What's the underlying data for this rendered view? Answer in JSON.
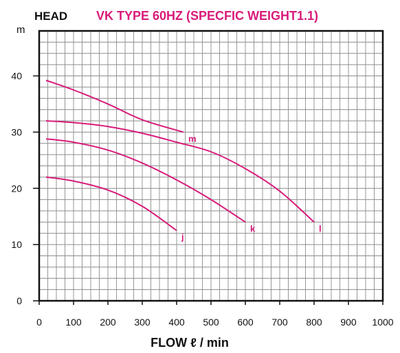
{
  "header": {
    "head_label": "HEAD",
    "title": "VK TYPE 60HZ (SPECFIC WEIGHT1.1)",
    "title_color": "#d81b7a"
  },
  "chart_data": {
    "type": "line",
    "title": "VK TYPE 60HZ (SPECFIC WEIGHT1.1)",
    "xlabel": "FLOW ℓ / min",
    "ylabel": "HEAD",
    "yunit": "m",
    "xlim": [
      0,
      1000
    ],
    "ylim": [
      0,
      48
    ],
    "xticks": [
      0,
      100,
      200,
      300,
      400,
      500,
      600,
      700,
      800,
      900,
      1000
    ],
    "yticks": [
      0,
      10,
      20,
      30,
      40
    ],
    "grid": true,
    "line_color": "#d81b7a",
    "series": [
      {
        "name": "m",
        "x": [
          20,
          100,
          200,
          300,
          420
        ],
        "y": [
          39.2,
          37.5,
          35,
          32.2,
          30
        ]
      },
      {
        "name": "l",
        "x": [
          20,
          100,
          200,
          300,
          400,
          500,
          600,
          700,
          800
        ],
        "y": [
          32,
          31.7,
          31,
          29.8,
          28.2,
          26.5,
          23.5,
          19.5,
          14
        ]
      },
      {
        "name": "k",
        "x": [
          20,
          100,
          200,
          300,
          400,
          500,
          600
        ],
        "y": [
          28.8,
          28.2,
          26.8,
          24.5,
          21.5,
          18,
          14
        ]
      },
      {
        "name": "j",
        "x": [
          20,
          100,
          200,
          300,
          400
        ],
        "y": [
          22,
          21.3,
          19.7,
          16.8,
          12.5
        ]
      }
    ]
  }
}
